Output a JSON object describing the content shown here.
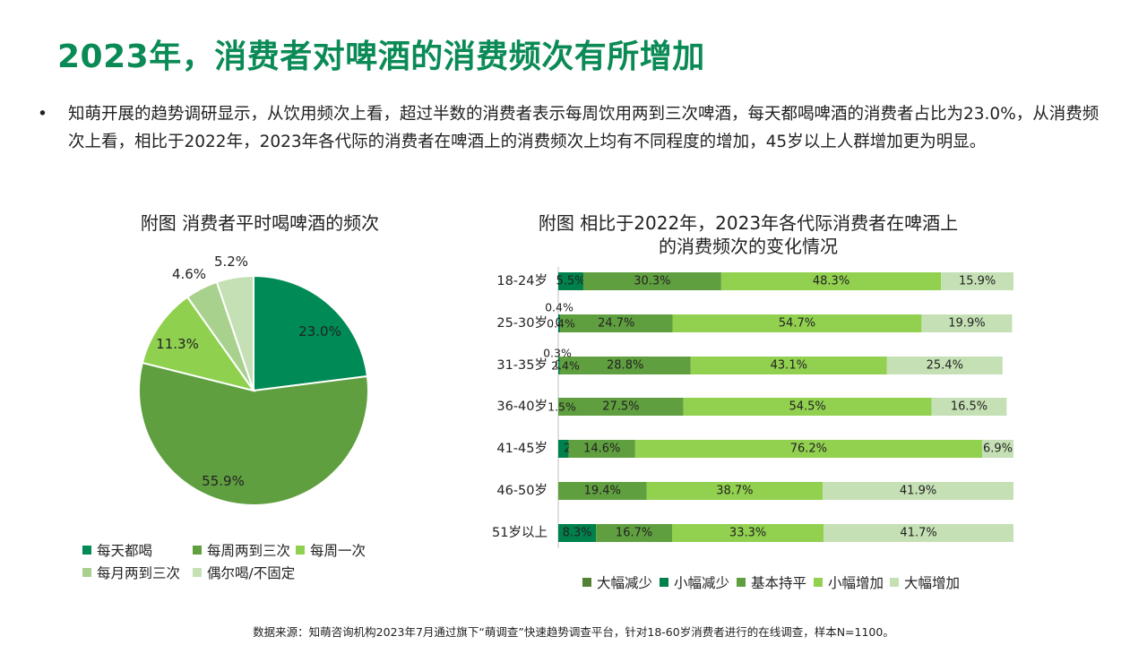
{
  "page": {
    "title": "2023年，消费者对啤酒的消费频次有所增加",
    "bullet": "•",
    "intro": "知萌开展的趋势调研显示，从饮用频次上看，超过半数的消费者表示每周饮用两到三次啤酒，每天都喝啤酒的消费者占比为23.0%，从消费频次上看，相比于2022年，2023年各代际的消费者在啤酒上的消费频次上均有不同程度的增加，45岁以上人群增加更为明显。",
    "source": "数据来源：知萌咨询机构2023年7月通过旗下“萌调查”快速趋势调查平台，针对18-60岁消费者进行的在线调查，样本N=1100。"
  },
  "chart_data": [
    {
      "type": "pie",
      "title": "附图 消费者平时喝啤酒的频次",
      "slices": [
        {
          "label": "每天都喝",
          "value": 23.0,
          "value_label": "23.0%",
          "color": "#008a55"
        },
        {
          "label": "每周两到三次",
          "value": 55.9,
          "value_label": "55.9%",
          "color": "#5f9f3f"
        },
        {
          "label": "每周一次",
          "value": 11.3,
          "value_label": "11.3%",
          "color": "#8fd14f"
        },
        {
          "label": "每月两到三次",
          "value": 4.6,
          "value_label": "4.6%",
          "color": "#a9d18e"
        },
        {
          "label": "偶尔喝/不固定",
          "value": 5.2,
          "value_label": "5.2%",
          "color": "#c5e0b4"
        }
      ],
      "legend_position": "bottom"
    },
    {
      "type": "bar",
      "orientation": "horizontal",
      "stacked": true,
      "title_lines": [
        "附图 相比于2022年，2023年各代际消费者在啤酒上",
        "的消费频次的变化情况"
      ],
      "categories": [
        "18-24岁",
        "25-30岁",
        "31-35岁",
        "36-40岁",
        "41-45岁",
        "46-50岁",
        "51岁以上"
      ],
      "series": [
        {
          "name": "大幅减少",
          "color": "#548235",
          "values": [
            0,
            0,
            0,
            0,
            0,
            0,
            0
          ],
          "labels": [
            "",
            "",
            "",
            "",
            "",
            "",
            ""
          ]
        },
        {
          "name": "小幅减少",
          "color": "#00804a",
          "values": [
            5.5,
            0.4,
            0.3,
            0,
            2.3,
            0,
            8.3
          ],
          "labels": [
            "5.5%",
            "0.4%",
            "0.3%",
            "",
            "2.3%",
            "",
            "8.3%"
          ]
        },
        {
          "name": "基本持平",
          "color": "#5f9f3f",
          "values": [
            30.3,
            24.7,
            28.8,
            27.5,
            14.6,
            19.4,
            16.7
          ],
          "labels": [
            "30.3%",
            "24.7%",
            "28.8%",
            "27.5%",
            "14.6%",
            "19.4%",
            "16.7%"
          ]
        },
        {
          "name": "小幅增加",
          "color": "#92d050",
          "values": [
            48.3,
            54.7,
            43.1,
            54.5,
            76.2,
            38.7,
            33.3
          ],
          "labels": [
            "48.3%",
            "54.7%",
            "43.1%",
            "54.5%",
            "76.2%",
            "38.7%",
            "33.3%"
          ]
        },
        {
          "name": "大幅增加",
          "color": "#c5e0b4",
          "values": [
            15.9,
            19.9,
            25.4,
            16.5,
            6.9,
            41.9,
            41.7
          ],
          "labels": [
            "15.9%",
            "19.9%",
            "25.4%",
            "16.5%",
            "6.9%",
            "41.9%",
            "41.7%"
          ]
        }
      ],
      "extra_labels": [
        {
          "category": "25-30岁",
          "text": "0.4%"
        },
        {
          "category": "25-30岁",
          "text": "0.4%"
        },
        {
          "category": "31-35岁",
          "text": "0.3%"
        },
        {
          "category": "31-35岁",
          "text": "2.4%"
        },
        {
          "category": "36-40岁",
          "text": "1.5%"
        }
      ],
      "xlim": [
        0,
        100
      ],
      "legend_position": "bottom"
    }
  ]
}
